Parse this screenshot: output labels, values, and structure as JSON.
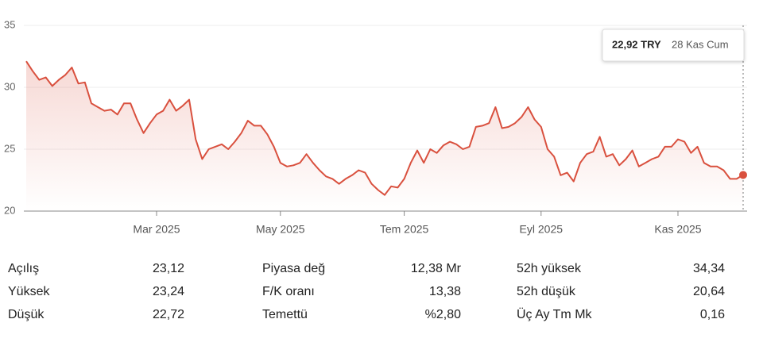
{
  "chart_data": {
    "type": "line",
    "color": "#d9503e",
    "categories": [
      null,
      null,
      null,
      null,
      null,
      null,
      null,
      null,
      null,
      null,
      null,
      null,
      null,
      null,
      null,
      null,
      null,
      null,
      null,
      null,
      "Mar 2025",
      null,
      null,
      null,
      null,
      null,
      null,
      null,
      null,
      null,
      null,
      null,
      null,
      null,
      null,
      null,
      null,
      null,
      null,
      "May 2025",
      null,
      null,
      null,
      null,
      null,
      null,
      null,
      null,
      null,
      null,
      null,
      null,
      null,
      null,
      null,
      null,
      null,
      null,
      "Tem 2025",
      null,
      null,
      null,
      null,
      null,
      null,
      null,
      null,
      null,
      null,
      null,
      null,
      null,
      null,
      null,
      null,
      null,
      null,
      null,
      null,
      "Eyl 2025",
      null,
      null,
      null,
      null,
      null,
      null,
      null,
      null,
      null,
      null,
      null,
      null,
      null,
      null,
      null,
      null,
      null,
      null,
      null,
      null,
      "Kas 2025",
      null,
      null,
      null,
      null,
      null,
      null,
      null,
      null,
      null,
      null
    ],
    "values": [
      32.1,
      31.3,
      30.6,
      30.8,
      30.1,
      30.6,
      31,
      31.6,
      30.3,
      30.4,
      28.7,
      28.4,
      28.1,
      28.2,
      27.8,
      28.7,
      28.7,
      27.4,
      26.3,
      27.1,
      27.8,
      28.1,
      29,
      28.1,
      28.5,
      29,
      25.8,
      24.2,
      25,
      25.2,
      25.4,
      25,
      25.6,
      26.3,
      27.3,
      26.9,
      26.9,
      26.2,
      25.2,
      23.9,
      23.6,
      23.7,
      23.9,
      24.6,
      23.9,
      23.3,
      22.8,
      22.6,
      22.2,
      22.6,
      22.9,
      23.3,
      23.1,
      22.2,
      21.7,
      21.3,
      22,
      21.9,
      22.6,
      23.9,
      24.9,
      23.9,
      25,
      24.7,
      25.3,
      25.6,
      25.4,
      25,
      25.2,
      26.8,
      26.9,
      27.1,
      28.4,
      26.7,
      26.8,
      27.1,
      27.6,
      28.4,
      27.4,
      26.8,
      25,
      24.4,
      22.9,
      23.1,
      22.4,
      23.9,
      24.6,
      24.8,
      26,
      24.4,
      24.6,
      23.7,
      24.2,
      24.9,
      23.6,
      23.9,
      24.2,
      24.4,
      25.2,
      25.2,
      25.8,
      25.6,
      24.7,
      25.2,
      23.9,
      23.6,
      23.6,
      23.3,
      22.6,
      22.6,
      22.92
    ],
    "ylim": [
      20,
      35
    ],
    "yticks": [
      20,
      25,
      30,
      35
    ],
    "grid": true,
    "tooltip": {
      "value_label": "22,92 TRY",
      "date": "28 Kas Cum"
    }
  },
  "stats": {
    "columns": [
      [
        {
          "label": "Açılış",
          "value": "23,12"
        },
        {
          "label": "Yüksek",
          "value": "23,24"
        },
        {
          "label": "Düşük",
          "value": "22,72"
        }
      ],
      [
        {
          "label": "Piyasa değ",
          "value": "12,38 Mr"
        },
        {
          "label": "F/K oranı",
          "value": "13,38"
        },
        {
          "label": "Temettü",
          "value": "%2,80"
        }
      ],
      [
        {
          "label": "52h yüksek",
          "value": "34,34"
        },
        {
          "label": "52h düşük",
          "value": "20,64"
        },
        {
          "label": "Üç Ay Tm Mk",
          "value": "0,16"
        }
      ]
    ]
  }
}
